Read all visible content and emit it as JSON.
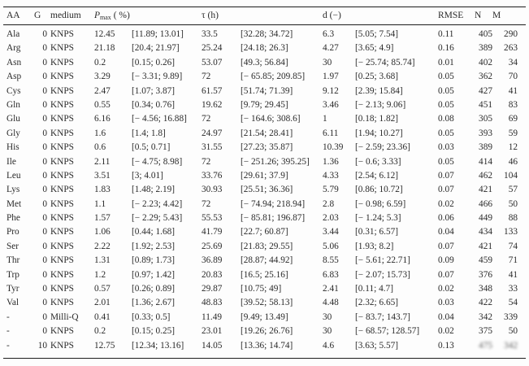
{
  "table": {
    "header": {
      "aa": "AA",
      "g": "G",
      "medium": "medium",
      "pmax_symbol": "P",
      "pmax_subscript": "max",
      "pmax_unit": " ( %)",
      "tau": "τ (h)",
      "d": "d (−)",
      "rmse": "RMSE",
      "n": "N",
      "m": "M"
    },
    "rows": [
      {
        "aa": "Ala",
        "g": "0",
        "medium": "KNPS",
        "pmax": "12.45",
        "pmax_ci": "[11.89; 13.01]",
        "tau": "33.5",
        "tau_ci": "[32.28; 34.72]",
        "d": "6.3",
        "d_ci": "[5.05; 7.54]",
        "rmse": "0.11",
        "n": "405",
        "m": "290"
      },
      {
        "aa": "Arg",
        "g": "0",
        "medium": "KNPS",
        "pmax": "21.18",
        "pmax_ci": "[20.4; 21.97]",
        "tau": "25.24",
        "tau_ci": "[24.18; 26.3]",
        "d": "4.27",
        "d_ci": "[3.65; 4.9]",
        "rmse": "0.16",
        "n": "389",
        "m": "263"
      },
      {
        "aa": "Asn",
        "g": "0",
        "medium": "KNPS",
        "pmax": "0.2",
        "pmax_ci": "[0.15; 0.26]",
        "tau": "53.07",
        "tau_ci": "[49.3; 56.84]",
        "d": "30",
        "d_ci": "[− 25.74; 85.74]",
        "rmse": "0.01",
        "n": "402",
        "m": "34"
      },
      {
        "aa": "Asp",
        "g": "0",
        "medium": "KNPS",
        "pmax": "3.29",
        "pmax_ci": "[− 3.31; 9.89]",
        "tau": "72",
        "tau_ci": "[− 65.85; 209.85]",
        "d": "1.97",
        "d_ci": "[0.25; 3.68]",
        "rmse": "0.05",
        "n": "362",
        "m": "70"
      },
      {
        "aa": "Cys",
        "g": "0",
        "medium": "KNPS",
        "pmax": "2.47",
        "pmax_ci": "[1.07; 3.87]",
        "tau": "61.57",
        "tau_ci": "[51.74; 71.39]",
        "d": "9.12",
        "d_ci": "[2.39; 15.84]",
        "rmse": "0.05",
        "n": "427",
        "m": "41"
      },
      {
        "aa": "Gln",
        "g": "0",
        "medium": "KNPS",
        "pmax": "0.55",
        "pmax_ci": "[0.34; 0.76]",
        "tau": "19.62",
        "tau_ci": "[9.79; 29.45]",
        "d": "3.46",
        "d_ci": "[− 2.13; 9.06]",
        "rmse": "0.05",
        "n": "451",
        "m": "83"
      },
      {
        "aa": "Glu",
        "g": "0",
        "medium": "KNPS",
        "pmax": "6.16",
        "pmax_ci": "[− 4.56; 16.88]",
        "tau": "72",
        "tau_ci": "[− 164.6; 308.6]",
        "d": "1",
        "d_ci": "[0.18; 1.82]",
        "rmse": "0.08",
        "n": "305",
        "m": "69"
      },
      {
        "aa": "Gly",
        "g": "0",
        "medium": "KNPS",
        "pmax": "1.6",
        "pmax_ci": "[1.4; 1.8]",
        "tau": "24.97",
        "tau_ci": "[21.54; 28.41]",
        "d": "6.11",
        "d_ci": "[1.94; 10.27]",
        "rmse": "0.05",
        "n": "393",
        "m": "59"
      },
      {
        "aa": "His",
        "g": "0",
        "medium": "KNPS",
        "pmax": "0.6",
        "pmax_ci": "[0.5; 0.71]",
        "tau": "31.55",
        "tau_ci": "[27.23; 35.87]",
        "d": "10.39",
        "d_ci": "[− 2.59; 23.36]",
        "rmse": "0.03",
        "n": "389",
        "m": "12"
      },
      {
        "aa": "Ile",
        "g": "0",
        "medium": "KNPS",
        "pmax": "2.11",
        "pmax_ci": "[− 4.75; 8.98]",
        "tau": "72",
        "tau_ci": "[− 251.26; 395.25]",
        "d": "1.36",
        "d_ci": "[− 0.6; 3.33]",
        "rmse": "0.05",
        "n": "414",
        "m": "46"
      },
      {
        "aa": "Leu",
        "g": "0",
        "medium": "KNPS",
        "pmax": "3.51",
        "pmax_ci": "[3; 4.01]",
        "tau": "33.76",
        "tau_ci": "[29.61; 37.9]",
        "d": "4.33",
        "d_ci": "[2.54; 6.12]",
        "rmse": "0.07",
        "n": "462",
        "m": "104"
      },
      {
        "aa": "Lys",
        "g": "0",
        "medium": "KNPS",
        "pmax": "1.83",
        "pmax_ci": "[1.48; 2.19]",
        "tau": "30.93",
        "tau_ci": "[25.51; 36.36]",
        "d": "5.79",
        "d_ci": "[0.86; 10.72]",
        "rmse": "0.07",
        "n": "421",
        "m": "57"
      },
      {
        "aa": "Met",
        "g": "0",
        "medium": "KNPS",
        "pmax": "1.1",
        "pmax_ci": "[− 2.23; 4.42]",
        "tau": "72",
        "tau_ci": "[− 74.94; 218.94]",
        "d": "2.8",
        "d_ci": "[− 0.98; 6.59]",
        "rmse": "0.02",
        "n": "466",
        "m": "50"
      },
      {
        "aa": "Phe",
        "g": "0",
        "medium": "KNPS",
        "pmax": "1.57",
        "pmax_ci": "[− 2.29; 5.43]",
        "tau": "55.53",
        "tau_ci": "[− 85.81; 196.87]",
        "d": "2.03",
        "d_ci": "[− 1.24; 5.3]",
        "rmse": "0.06",
        "n": "449",
        "m": "88"
      },
      {
        "aa": "Pro",
        "g": "0",
        "medium": "KNPS",
        "pmax": "1.06",
        "pmax_ci": "[0.44; 1.68]",
        "tau": "41.79",
        "tau_ci": "[22.7; 60.87]",
        "d": "3.44",
        "d_ci": "[0.31; 6.57]",
        "rmse": "0.04",
        "n": "434",
        "m": "133"
      },
      {
        "aa": "Ser",
        "g": "0",
        "medium": "KNPS",
        "pmax": "2.22",
        "pmax_ci": "[1.92; 2.53]",
        "tau": "25.69",
        "tau_ci": "[21.83; 29.55]",
        "d": "5.06",
        "d_ci": "[1.93; 8.2]",
        "rmse": "0.07",
        "n": "421",
        "m": "74"
      },
      {
        "aa": "Thr",
        "g": "0",
        "medium": "KNPS",
        "pmax": "1.31",
        "pmax_ci": "[0.89; 1.73]",
        "tau": "36.89",
        "tau_ci": "[28.87; 44.92]",
        "d": "8.55",
        "d_ci": "[− 5.61; 22.71]",
        "rmse": "0.09",
        "n": "459",
        "m": "71"
      },
      {
        "aa": "Trp",
        "g": "0",
        "medium": "KNPS",
        "pmax": "1.2",
        "pmax_ci": "[0.97; 1.42]",
        "tau": "20.83",
        "tau_ci": "[16.5; 25.16]",
        "d": "6.83",
        "d_ci": "[− 2.07; 15.73]",
        "rmse": "0.07",
        "n": "376",
        "m": "41"
      },
      {
        "aa": "Tyr",
        "g": "0",
        "medium": "KNPS",
        "pmax": "0.57",
        "pmax_ci": "[0.26; 0.89]",
        "tau": "29.87",
        "tau_ci": "[10.75; 49]",
        "d": "2.41",
        "d_ci": "[0.11; 4.7]",
        "rmse": "0.02",
        "n": "348",
        "m": "33"
      },
      {
        "aa": "Val",
        "g": "0",
        "medium": "KNPS",
        "pmax": "2.01",
        "pmax_ci": "[1.36; 2.67]",
        "tau": "48.83",
        "tau_ci": "[39.52; 58.13]",
        "d": "4.48",
        "d_ci": "[2.32; 6.65]",
        "rmse": "0.03",
        "n": "422",
        "m": "54"
      },
      {
        "aa": "-",
        "g": "0",
        "medium": "Milli-Q",
        "pmax": "0.41",
        "pmax_ci": "[0.33; 0.5]",
        "tau": "11.49",
        "tau_ci": "[9.49; 13.49]",
        "d": "30",
        "d_ci": "[− 83.7; 143.7]",
        "rmse": "0.04",
        "n": "342",
        "m": "339"
      },
      {
        "aa": "-",
        "g": "0",
        "medium": "KNPS",
        "pmax": "0.2",
        "pmax_ci": "[0.15; 0.25]",
        "tau": "23.01",
        "tau_ci": "[19.26; 26.76]",
        "d": "30",
        "d_ci": "[− 68.57; 128.57]",
        "rmse": "0.02",
        "n": "375",
        "m": "50"
      },
      {
        "aa": "-",
        "g": "10",
        "medium": "KNPS",
        "pmax": "12.75",
        "pmax_ci": "[12.34; 13.16]",
        "tau": "14.05",
        "tau_ci": "[13.36; 14.74]",
        "d": "4.6",
        "d_ci": "[3.63; 5.57]",
        "rmse": "0.13",
        "n": "475",
        "m": "342",
        "nm_blurred": true
      }
    ]
  }
}
